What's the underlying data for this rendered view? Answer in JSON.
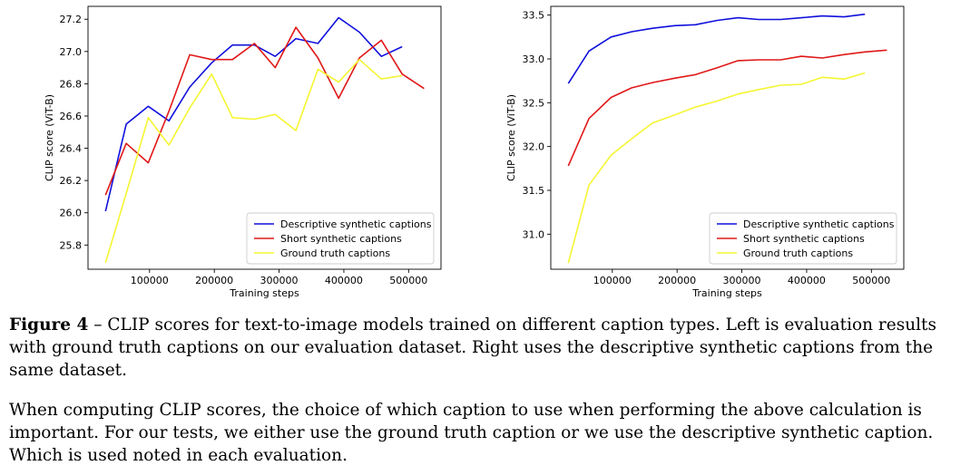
{
  "chart_data": [
    {
      "type": "line",
      "xlabel": "Training steps",
      "ylabel": "CLIP score (ViT-B)",
      "xlim": [
        5000,
        550000
      ],
      "ylim": [
        25.65,
        27.28
      ],
      "xticks": [
        100000,
        200000,
        300000,
        400000,
        500000
      ],
      "xtick_labels": [
        "100000",
        "200000",
        "300000",
        "400000",
        "500000"
      ],
      "yticks": [
        25.8,
        26.0,
        26.2,
        26.4,
        26.6,
        26.8,
        27.0,
        27.2
      ],
      "ytick_labels": [
        "25.8",
        "26.0",
        "26.2",
        "26.4",
        "26.6",
        "26.8",
        "27.0",
        "27.2"
      ],
      "legend_position": "lower-right",
      "grid": false,
      "series": [
        {
          "name": "Descriptive synthetic captions",
          "color": "#1010dd",
          "x": [
            32000,
            64000,
            98000,
            130000,
            162000,
            196000,
            228000,
            262000,
            294000,
            326000,
            360000,
            392000,
            424000,
            458000,
            490000
          ],
          "y": [
            26.01,
            26.55,
            26.66,
            26.57,
            26.78,
            26.93,
            27.04,
            27.04,
            26.97,
            27.08,
            27.05,
            27.21,
            27.12,
            26.97,
            27.03
          ]
        },
        {
          "name": "Short synthetic captions",
          "color": "#e01818",
          "x": [
            32000,
            64000,
            98000,
            130000,
            162000,
            196000,
            228000,
            262000,
            294000,
            326000,
            360000,
            392000,
            424000,
            458000,
            490000,
            524000
          ],
          "y": [
            26.11,
            26.43,
            26.31,
            26.63,
            26.98,
            26.95,
            26.95,
            27.05,
            26.9,
            27.15,
            26.96,
            26.71,
            26.96,
            27.07,
            26.86,
            26.77
          ]
        },
        {
          "name": "Ground truth captions",
          "color": "#f5f532",
          "x": [
            32000,
            64000,
            98000,
            130000,
            162000,
            196000,
            228000,
            262000,
            294000,
            326000,
            360000,
            392000,
            424000,
            458000,
            490000
          ],
          "y": [
            25.69,
            26.12,
            26.59,
            26.42,
            26.65,
            26.86,
            26.59,
            26.58,
            26.61,
            26.51,
            26.89,
            26.81,
            26.95,
            26.83,
            26.85
          ]
        }
      ]
    },
    {
      "type": "line",
      "xlabel": "Training steps",
      "ylabel": "CLIP score (ViT-B)",
      "xlim": [
        5000,
        550000
      ],
      "ylim": [
        30.6,
        33.6
      ],
      "xticks": [
        100000,
        200000,
        300000,
        400000,
        500000
      ],
      "xtick_labels": [
        "100000",
        "200000",
        "300000",
        "400000",
        "500000"
      ],
      "yticks": [
        31.0,
        31.5,
        32.0,
        32.5,
        33.0,
        33.5
      ],
      "ytick_labels": [
        "31.0",
        "31.5",
        "32.0",
        "32.5",
        "33.0",
        "33.5"
      ],
      "legend_position": "lower-right",
      "grid": false,
      "series": [
        {
          "name": "Descriptive synthetic captions",
          "color": "#1010dd",
          "x": [
            32000,
            64000,
            98000,
            130000,
            162000,
            196000,
            228000,
            262000,
            294000,
            326000,
            360000,
            392000,
            424000,
            458000,
            490000
          ],
          "y": [
            32.72,
            33.09,
            33.25,
            33.31,
            33.35,
            33.38,
            33.39,
            33.44,
            33.47,
            33.45,
            33.45,
            33.47,
            33.49,
            33.48,
            33.51
          ]
        },
        {
          "name": "Short synthetic captions",
          "color": "#e01818",
          "x": [
            32000,
            64000,
            98000,
            130000,
            162000,
            196000,
            228000,
            262000,
            294000,
            326000,
            360000,
            392000,
            424000,
            458000,
            490000,
            524000
          ],
          "y": [
            31.78,
            32.32,
            32.56,
            32.67,
            32.73,
            32.78,
            32.82,
            32.9,
            32.98,
            32.99,
            32.99,
            33.03,
            33.01,
            33.05,
            33.08,
            33.1
          ]
        },
        {
          "name": "Ground truth captions",
          "color": "#f5f532",
          "x": [
            32000,
            64000,
            98000,
            130000,
            162000,
            196000,
            228000,
            262000,
            294000,
            326000,
            360000,
            392000,
            424000,
            458000,
            490000
          ],
          "y": [
            30.67,
            31.56,
            31.9,
            32.09,
            32.27,
            32.36,
            32.45,
            32.52,
            32.6,
            32.65,
            32.7,
            32.71,
            32.79,
            32.77,
            32.84
          ]
        }
      ]
    }
  ],
  "caption": {
    "label": "Figure 4",
    "text": " – CLIP scores for text-to-image models trained on different caption types. Left is evaluation results with ground truth captions on our evaluation dataset. Right uses the descriptive synthetic captions from the same dataset."
  },
  "body_text": "When computing CLIP scores, the choice of which caption to use when performing the above calculation is important. For our tests, we either use the ground truth caption or we use the descriptive synthetic caption. Which is used noted in each evaluation."
}
